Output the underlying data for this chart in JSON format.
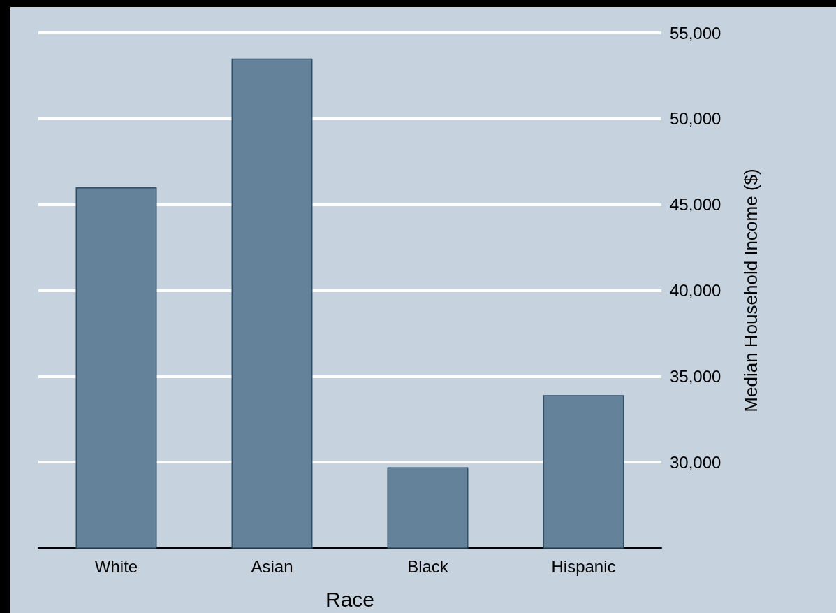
{
  "chart_data": {
    "type": "bar",
    "xlabel": "Race",
    "ylabel": "Median Household Income ($)",
    "categories": [
      "White",
      "Asian",
      "Black",
      "Hispanic"
    ],
    "values": [
      46000,
      53500,
      29700,
      33900
    ],
    "color": "#64829a",
    "ylim": [
      25000,
      55000
    ],
    "yticks": [
      {
        "value": 30000,
        "label": "30,000"
      },
      {
        "value": 35000,
        "label": "35,000"
      },
      {
        "value": 40000,
        "label": "40,000"
      },
      {
        "value": 45000,
        "label": "45,000"
      },
      {
        "value": 50000,
        "label": "50,000"
      },
      {
        "value": 55000,
        "label": "55,000"
      }
    ],
    "grid": "y"
  }
}
